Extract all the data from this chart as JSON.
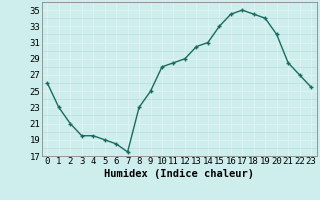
{
  "x": [
    0,
    1,
    2,
    3,
    4,
    5,
    6,
    7,
    8,
    9,
    10,
    11,
    12,
    13,
    14,
    15,
    16,
    17,
    18,
    19,
    20,
    21,
    22,
    23
  ],
  "y": [
    26,
    23,
    21,
    19.5,
    19.5,
    19,
    18.5,
    17.5,
    23,
    25,
    28,
    28.5,
    29,
    30.5,
    31,
    33,
    34.5,
    35,
    34.5,
    34,
    32,
    28.5,
    27,
    25.5
  ],
  "line_color": "#1a6b5e",
  "marker": "+",
  "bg_color": "#ceeeed",
  "grid_color": "#b8d8d8",
  "grid_white_color": "#dff3f2",
  "xlabel": "Humidex (Indice chaleur)",
  "xlim": [
    -0.5,
    23.5
  ],
  "ylim": [
    17,
    36
  ],
  "yticks": [
    17,
    19,
    21,
    23,
    25,
    27,
    29,
    31,
    33,
    35
  ],
  "xticks": [
    0,
    1,
    2,
    3,
    4,
    5,
    6,
    7,
    8,
    9,
    10,
    11,
    12,
    13,
    14,
    15,
    16,
    17,
    18,
    19,
    20,
    21,
    22,
    23
  ],
  "xlabel_fontsize": 7.5,
  "tick_fontsize": 6.5,
  "linewidth": 1.0,
  "markersize": 3.5,
  "markeredgewidth": 1.0
}
